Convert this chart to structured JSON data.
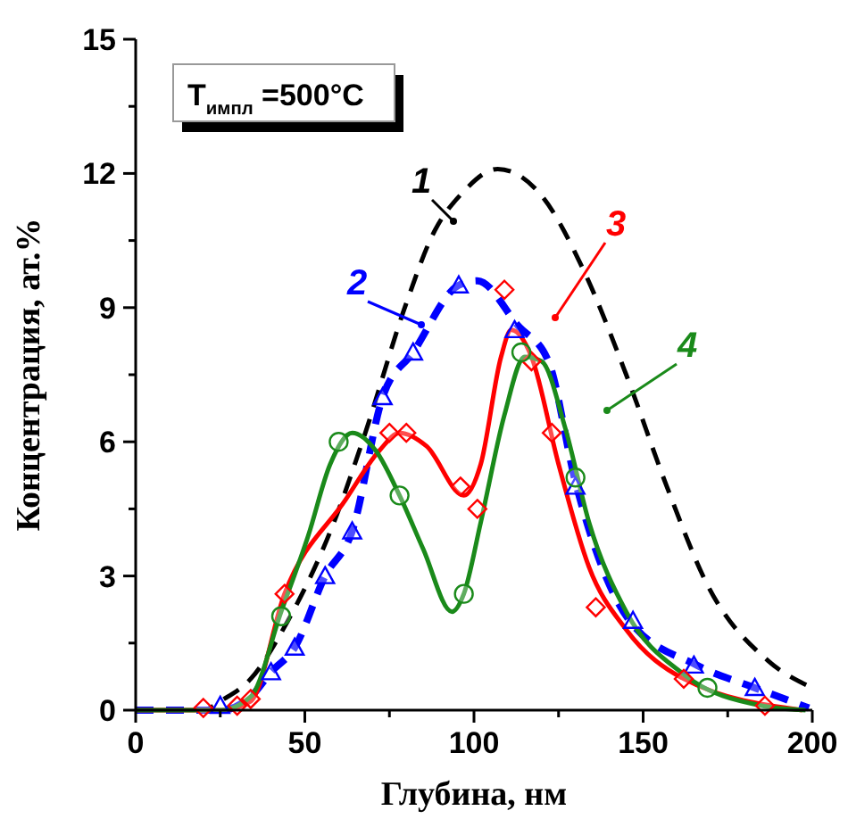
{
  "chart_data": {
    "type": "line",
    "xlabel": "Глубина, нм",
    "ylabel": "Концентрация, ат.%",
    "xlim": [
      0,
      200
    ],
    "ylim": [
      0,
      15
    ],
    "xticks": [
      0,
      {
        "value": 25,
        "label": null
      },
      50,
      {
        "value": 75,
        "label": null
      },
      100,
      {
        "value": 125,
        "label": null
      },
      150,
      {
        "value": 175,
        "label": null
      },
      200
    ],
    "yticks": [
      0,
      {
        "value": 1.5,
        "label": null
      },
      3,
      {
        "value": 4.5,
        "label": null
      },
      6,
      {
        "value": 7.5,
        "label": null
      },
      9,
      {
        "value": 10.5,
        "label": null
      },
      12,
      {
        "value": 13.5,
        "label": null
      },
      15
    ],
    "grid": false,
    "annotations": [
      "T$_{импл}$ =500°C"
    ],
    "series": [
      {
        "name": "1",
        "color": "#000000",
        "line_style": "dashed",
        "marker": "none",
        "x": [
          0,
          20,
          25,
          34,
          45,
          58.6,
          67,
          80,
          87.6,
          97,
          107,
          120,
          132,
          145,
          157,
          169,
          187,
          200
        ],
        "values": [
          0,
          0,
          0.2,
          0.7,
          2,
          4.2,
          6,
          9.1,
          10.6,
          11.6,
          12.1,
          11.5,
          9.9,
          7.5,
          5,
          2.8,
          1.1,
          0.5
        ]
      },
      {
        "name": "2",
        "color": "#0000ff",
        "line_style": "dashed",
        "marker": "none",
        "x": [
          0,
          25,
          34,
          40,
          47,
          56,
          64,
          73,
          82,
          95.5,
          101,
          113,
          122,
          130,
          146,
          166,
          183,
          199
        ],
        "values": [
          0,
          0,
          0.3,
          0.85,
          1.4,
          3,
          4,
          7,
          8,
          9.5,
          9.6,
          8.6,
          7.8,
          5.1,
          2,
          1,
          0.5,
          0.05
        ]
      },
      {
        "name": "3",
        "color": "#ff0000",
        "line_style": "solid",
        "marker": "none",
        "x": [
          0,
          25,
          34,
          44,
          62,
          72,
          78,
          86,
          97,
          102,
          108,
          111,
          117,
          125,
          134,
          145,
          162,
          197
        ],
        "values": [
          0,
          0,
          0.2,
          2.6,
          4.7,
          5.8,
          6.2,
          5.9,
          4.8,
          5.5,
          7.9,
          8.5,
          7.9,
          5.5,
          3.2,
          1.8,
          0.7,
          0
        ]
      },
      {
        "name": "4",
        "color": "#1a8a1a",
        "line_style": "solid",
        "marker": "none",
        "x": [
          0,
          25,
          34,
          43,
          51,
          57.5,
          64,
          71,
          78,
          85,
          93.5,
          97,
          102,
          109,
          115,
          120,
          127,
          134,
          145,
          162,
          185,
          198
        ],
        "values": [
          0,
          0,
          0.3,
          2.2,
          3.9,
          5.5,
          6.2,
          5.8,
          4.8,
          3.6,
          2.2,
          2.6,
          4.2,
          6.6,
          7.9,
          7.8,
          6.3,
          4.2,
          2.2,
          0.8,
          0.1,
          0
        ]
      },
      {
        "type": "scatter",
        "color": "#0000ff",
        "marker": "triangle",
        "x": [
          25,
          40,
          47,
          56,
          64,
          73,
          82,
          95.5,
          112,
          130,
          147,
          165,
          183
        ],
        "values": [
          0.1,
          0.85,
          1.4,
          3,
          4,
          7,
          8,
          9.5,
          8.5,
          5,
          2,
          1,
          0.5
        ]
      },
      {
        "type": "scatter",
        "color": "#ff0000",
        "marker": "diamond",
        "x": [
          20,
          30,
          34,
          44,
          75,
          80,
          96,
          101,
          109,
          117,
          123,
          136,
          162,
          186
        ],
        "values": [
          0.05,
          0.1,
          0.25,
          2.6,
          6.2,
          6.2,
          5,
          4.5,
          9.4,
          7.8,
          6.2,
          2.3,
          0.7,
          0.1
        ]
      },
      {
        "type": "scatter",
        "color": "#1a8a1a",
        "marker": "circle",
        "x": [
          43,
          60,
          78,
          97,
          114,
          130,
          169
        ],
        "values": [
          2.1,
          6,
          4.8,
          2.6,
          8,
          5.2,
          0.5
        ]
      }
    ]
  }
}
